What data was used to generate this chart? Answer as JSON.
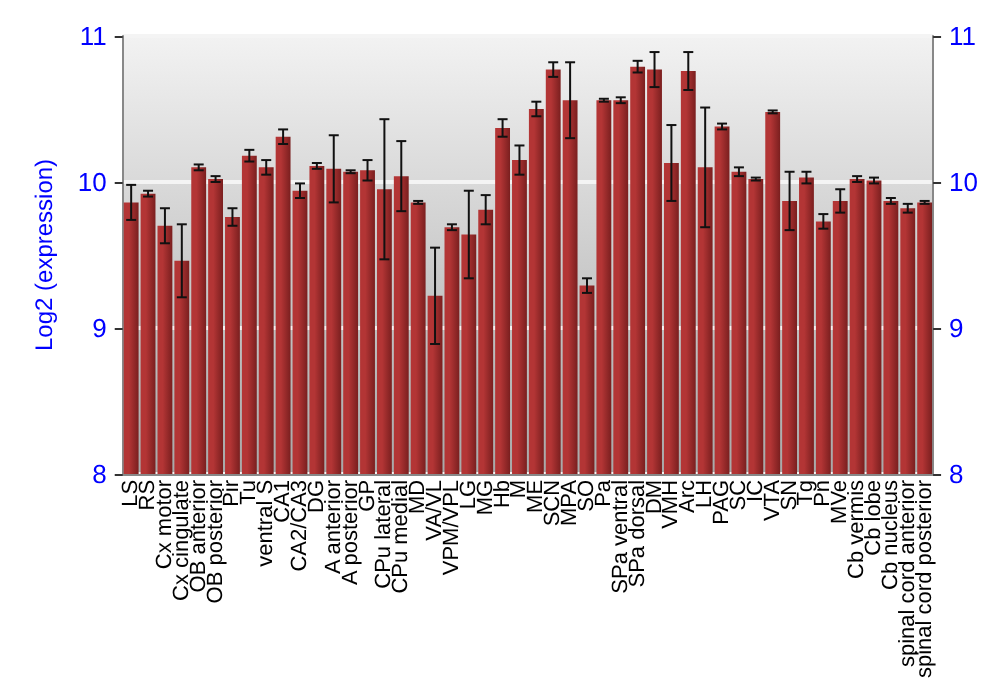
{
  "chart_data": {
    "type": "bar",
    "ylabel": "Log2 (expression)",
    "categories": [
      "LS",
      "RS",
      "Cx motor",
      "Cx cingulate",
      "OB anterior",
      "OB posterior",
      "Pir",
      "Tu",
      "ventral S",
      "CA1",
      "CA2/CA3",
      "DG",
      "A anterior",
      "A posterior",
      "GP",
      "CPu lateral",
      "CPu medial",
      "MD",
      "VA/VL",
      "VPM/VPL",
      "LG",
      "MG",
      "Hb",
      "M",
      "ME",
      "SCN",
      "MPA",
      "SO",
      "Pa",
      "SPa ventral",
      "SPa dorsal",
      "DM",
      "VMH",
      "Arc",
      "LH",
      "PAG",
      "SC",
      "IC",
      "VTA",
      "SN",
      "Tg",
      "Pn",
      "MVe",
      "Cb vermis",
      "Cb lobe",
      "Cb nucleus",
      "spinal cord anterior",
      "spinal cord posterior"
    ],
    "values": [
      9.86,
      9.92,
      9.7,
      9.46,
      10.1,
      10.02,
      9.76,
      10.18,
      10.1,
      10.31,
      9.94,
      10.11,
      10.09,
      10.07,
      10.08,
      9.95,
      10.04,
      9.86,
      9.22,
      9.69,
      9.64,
      9.81,
      10.37,
      10.15,
      10.5,
      10.77,
      10.56,
      9.29,
      10.56,
      10.56,
      10.79,
      10.77,
      10.13,
      10.76,
      10.1,
      10.38,
      10.07,
      10.02,
      10.48,
      9.87,
      10.03,
      9.73,
      9.87,
      10.02,
      10.01,
      9.87,
      9.82,
      9.86
    ],
    "errors": [
      0.12,
      0.02,
      0.12,
      0.25,
      0.02,
      0.02,
      0.06,
      0.04,
      0.05,
      0.05,
      0.05,
      0.02,
      0.23,
      0.01,
      0.07,
      0.48,
      0.24,
      0.01,
      0.33,
      0.02,
      0.3,
      0.1,
      0.06,
      0.1,
      0.05,
      0.05,
      0.26,
      0.05,
      0.01,
      0.02,
      0.04,
      0.12,
      0.26,
      0.13,
      0.41,
      0.02,
      0.03,
      0.01,
      0.01,
      0.2,
      0.04,
      0.05,
      0.08,
      0.02,
      0.02,
      0.02,
      0.03,
      0.01
    ],
    "color": "#b33535",
    "ylim": [
      8,
      11
    ],
    "yticks": [
      8,
      9,
      10,
      11
    ],
    "y2lim": [
      8,
      11
    ],
    "y2ticks": [
      8,
      9,
      10,
      11
    ],
    "grid": "y"
  }
}
